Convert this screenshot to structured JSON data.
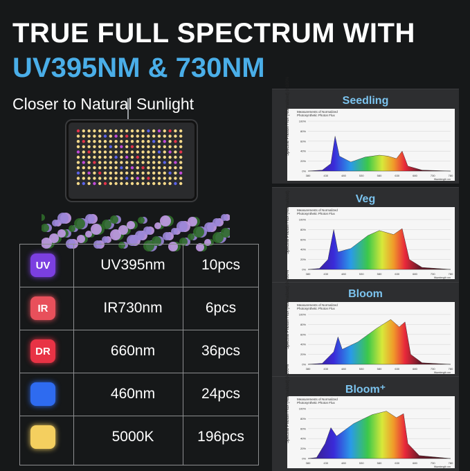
{
  "title_line1": "TRUE FULL SPECTRUM WITH",
  "title_line2": "UV395NM & 730NM",
  "subtitle": "Closer to Natural Sunlight",
  "table": {
    "rows": [
      {
        "badge": "UV",
        "badge_color": "#7b3fe0",
        "name": "UV395nm",
        "count": "10pcs"
      },
      {
        "badge": "IR",
        "badge_color": "#e8505b",
        "name": "IR730nm",
        "count": "6pcs"
      },
      {
        "badge": "DR",
        "badge_color": "#e83345",
        "name": "660nm",
        "count": "36pcs"
      },
      {
        "badge": "",
        "badge_color": "#2e6bf0",
        "name": "460nm",
        "count": "24pcs"
      },
      {
        "badge": "",
        "badge_color": "#f4cf5f",
        "name": "5000K",
        "count": "196pcs"
      }
    ]
  },
  "charts": [
    {
      "title": "Seedling",
      "note": "Measurements of Normalized\nPhotosynthetic Photon Flux",
      "ylabel": "Spectral Photon Flux (Normalized) 0-100%",
      "xlabel": "Wavelength nm",
      "yticks": [
        "100%",
        "80%",
        "60%",
        "40%",
        "20%",
        "0%"
      ],
      "xticks": [
        "380",
        "430",
        "480",
        "530",
        "580",
        "630",
        "680",
        "730",
        "780"
      ]
    },
    {
      "title": "Veg",
      "note": "Measurements of Normalized\nPhotosynthetic Photon Flux",
      "ylabel": "Spectral Photon Flux (Normalized)",
      "xlabel": "Wavelength nm",
      "yticks": [
        "100%",
        "80%",
        "60%",
        "40%",
        "20%",
        "0%"
      ],
      "xticks": [
        "380",
        "430",
        "480",
        "530",
        "580",
        "630",
        "680",
        "730",
        "780"
      ]
    },
    {
      "title": "Bloom",
      "note": "Measurements of Normalized\nPhotosynthetic Photon Flux",
      "ylabel": "Spectral Photon Flux (Normalized) 0-100%",
      "xlabel": "Wavelength nm",
      "yticks": [
        "100%",
        "80%",
        "60%",
        "40%",
        "20%",
        "0%"
      ],
      "xticks": [
        "380",
        "430",
        "480",
        "530",
        "580",
        "630",
        "680",
        "730",
        "780"
      ]
    },
    {
      "title": "Bloom⁺",
      "note": "Measurements of Normalized\nPhotosynthetic Photon Flux",
      "ylabel": "Spectral Photon Flux (Normalized) 0-100%",
      "xlabel": "Wavelength nm",
      "yticks": [
        "100%",
        "80%",
        "60%",
        "40%",
        "20%",
        "0%"
      ],
      "xticks": [
        "380",
        "430",
        "480",
        "530",
        "580",
        "630",
        "680",
        "730",
        "780"
      ]
    }
  ]
}
